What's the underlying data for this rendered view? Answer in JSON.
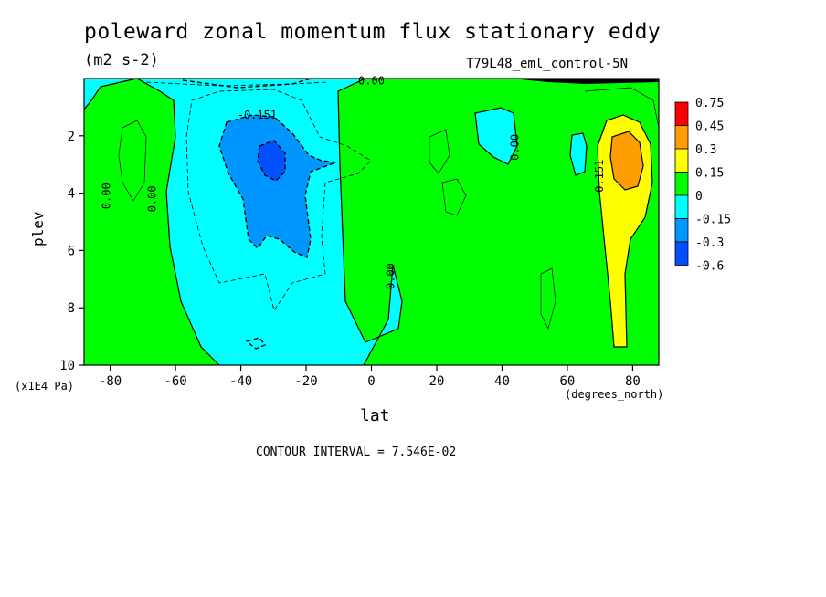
{
  "chart_data": {
    "type": "heatmap",
    "title": "poleward zonal momentum flux stationary eddy",
    "units": "(m2 s-2)",
    "dataset": "T79L48_eml_control-5N",
    "xlabel": "lat",
    "x_units": "(degrees_north)",
    "ylabel": "plev",
    "y_units": "(x1E4 Pa)",
    "xlim": [
      -88,
      88
    ],
    "ylim": [
      10,
      0
    ],
    "x_ticks": [
      "-80",
      "-60",
      "-40",
      "-20",
      "0",
      "20",
      "40",
      "60",
      "80"
    ],
    "x_tick_values": [
      -80,
      -60,
      -40,
      -20,
      0,
      20,
      40,
      60,
      80
    ],
    "y_ticks": [
      "2",
      "4",
      "6",
      "8",
      "10"
    ],
    "y_tick_values": [
      2,
      4,
      6,
      8,
      10
    ],
    "contour_interval_text": "CONTOUR INTERVAL = 7.546E-02",
    "contour_labels": [
      {
        "text": "0.00",
        "lat": -80,
        "plev": 4.1
      },
      {
        "text": "0.00",
        "lat": -66,
        "plev": 4.2
      },
      {
        "text": "-0.151",
        "lat": -35,
        "plev": 1.4
      },
      {
        "text": "0.00",
        "lat": 0,
        "plev": 0.2
      },
      {
        "text": "0.00",
        "lat": 7,
        "plev": 6.9
      },
      {
        "text": "0.00",
        "lat": 45,
        "plev": 2.4
      },
      {
        "text": "0.151",
        "lat": 71,
        "plev": 3.4
      }
    ],
    "colorbar": {
      "levels": [
        "0.75",
        "0.45",
        "0.3",
        "0.15",
        "0",
        "-0.15",
        "-0.3",
        "-0.6"
      ],
      "colors": [
        "#ff0000",
        "#ff9e00",
        "#ffff00",
        "#00ff00",
        "#00ffff",
        "#0096ff",
        "#0050ff"
      ]
    }
  },
  "colors": {
    "neg_low": "#00ffff",
    "neg_mid": "#0096ff",
    "neg_high": "#0050ff",
    "pos_low": "#00ff00",
    "pos_mid": "#ffff00",
    "pos_high": "#ff9e00",
    "pos_max": "#ff0000"
  }
}
